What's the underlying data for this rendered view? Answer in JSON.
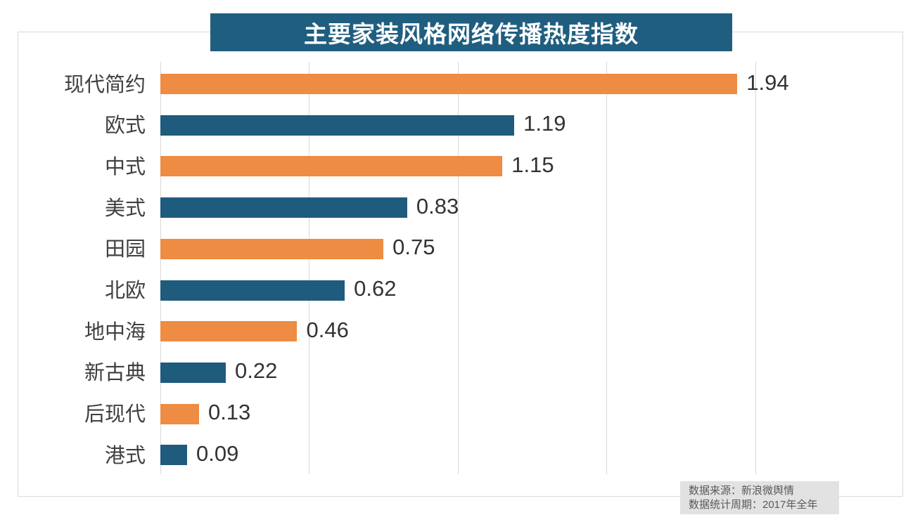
{
  "header": {
    "title": "主要家装风格网络传播热度指数",
    "bg_color": "#205e80",
    "text_color": "#ffffff"
  },
  "source_note": {
    "line1": "数据来源：新浪微舆情",
    "line2": "数据统计周期：2017年全年"
  },
  "chart_data": {
    "type": "bar",
    "orientation": "horizontal",
    "title": "主要家装风格网络传播热度指数",
    "categories": [
      "现代简约",
      "欧式",
      "中式",
      "美式",
      "田园",
      "北欧",
      "地中海",
      "新古典",
      "后现代",
      "港式"
    ],
    "values": [
      1.94,
      1.19,
      1.15,
      0.83,
      0.75,
      0.62,
      0.46,
      0.22,
      0.13,
      0.09
    ],
    "value_labels": [
      "1.94",
      "1.19",
      "1.15",
      "0.83",
      "0.75",
      "0.62",
      "0.46",
      "0.22",
      "0.13",
      "0.09"
    ],
    "xlim": [
      0,
      2.5
    ],
    "grid_ticks": [
      0,
      0.5,
      1.0,
      1.5,
      2.0
    ],
    "grid": "vertical-only",
    "legend": "none",
    "bar_palette": [
      "#ed8c42",
      "#1f5b7d"
    ],
    "grid_color": "#d9d9d9",
    "label_color": "#404040",
    "value_color": "#333333"
  }
}
